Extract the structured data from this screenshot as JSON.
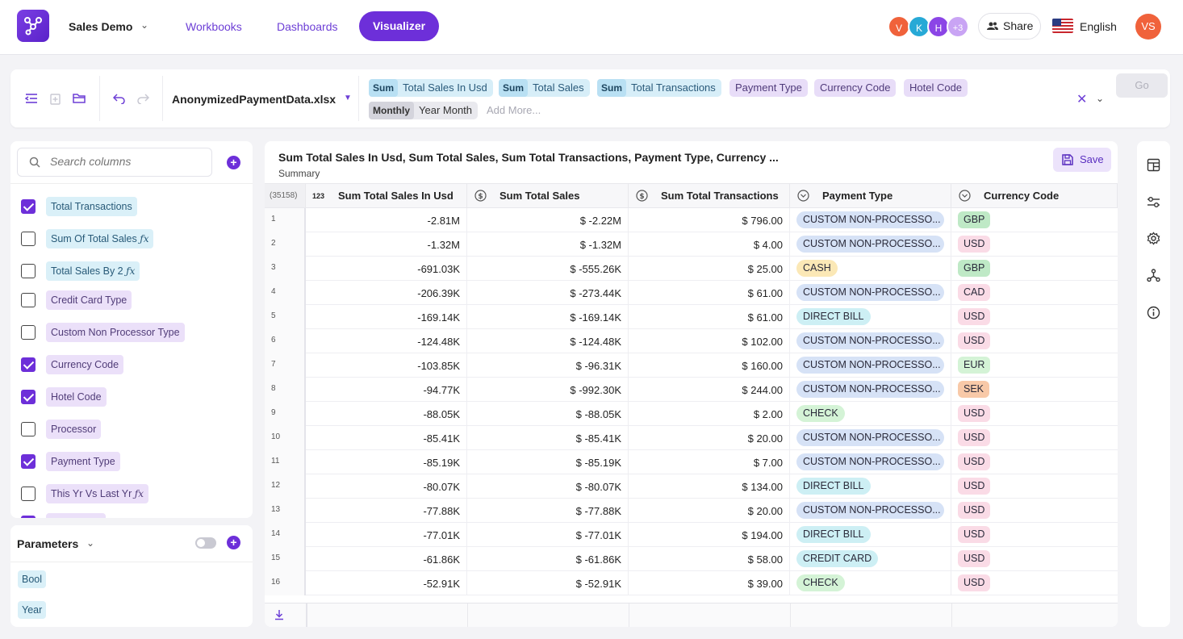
{
  "header": {
    "app_name": "Sales Demo",
    "nav": [
      "Workbooks",
      "Dashboards",
      "Visualizer"
    ],
    "active_nav": "Visualizer",
    "collaborators": [
      {
        "initial": "V",
        "color": "#f0623b"
      },
      {
        "initial": "K",
        "color": "#27a9d6"
      },
      {
        "initial": "H",
        "color": "#8b45e6"
      },
      {
        "initial": "+3",
        "color": "#c9a4f4"
      }
    ],
    "share_label": "Share",
    "language": "English",
    "user_initials": "VS"
  },
  "query": {
    "file_name": "AnonymizedPaymentData.xlsx",
    "chips_row1": [
      {
        "agg": "Sum",
        "label": "Total Sales In Usd",
        "kind": "blue"
      },
      {
        "agg": "Sum",
        "label": "Total Sales",
        "kind": "blue"
      },
      {
        "agg": "Sum",
        "label": "Total Transactions",
        "kind": "blue"
      },
      {
        "agg": "",
        "label": "Payment Type",
        "kind": "purple"
      },
      {
        "agg": "",
        "label": "Currency Code",
        "kind": "purple"
      },
      {
        "agg": "",
        "label": "Hotel Code",
        "kind": "purple"
      }
    ],
    "chips_row2": [
      {
        "agg": "Monthly",
        "label": "Year Month",
        "kind": "gray"
      }
    ],
    "add_more_placeholder": "Add More...",
    "go_label": "Go"
  },
  "columns_panel": {
    "search_placeholder": "Search columns",
    "items": [
      {
        "label": "Total Transactions",
        "checked": true,
        "kind": "blue",
        "fx": false
      },
      {
        "label": "Sum Of Total Sales",
        "checked": false,
        "kind": "blue",
        "fx": true
      },
      {
        "label": "Total Sales By 2",
        "checked": false,
        "kind": "blue",
        "fx": true
      },
      {
        "label": "Credit Card Type",
        "checked": false,
        "kind": "purple",
        "fx": false
      },
      {
        "label": "Custom Non Processor Type",
        "checked": false,
        "kind": "purple",
        "fx": false
      },
      {
        "label": "Currency Code",
        "checked": true,
        "kind": "purple",
        "fx": false
      },
      {
        "label": "Hotel Code",
        "checked": true,
        "kind": "purple",
        "fx": false
      },
      {
        "label": "Processor",
        "checked": false,
        "kind": "purple",
        "fx": false
      },
      {
        "label": "Payment Type",
        "checked": true,
        "kind": "purple",
        "fx": false
      },
      {
        "label": "This Yr Vs Last Yr",
        "checked": false,
        "kind": "purple",
        "fx": true
      }
    ]
  },
  "parameters": {
    "title": "Parameters",
    "items": [
      "Bool",
      "Year"
    ]
  },
  "table": {
    "title": "Sum Total Sales In Usd, Sum Total Sales, Sum Total Transactions, Payment Type, Currency ...",
    "subtitle": "Summary",
    "save_label": "Save",
    "row_count": "(35158)",
    "headers": [
      {
        "label": "Sum Total Sales In Usd",
        "icon": "123"
      },
      {
        "label": "Sum Total Sales",
        "icon": "$"
      },
      {
        "label": "Sum Total Transactions",
        "icon": "$"
      },
      {
        "label": "Payment Type",
        "icon": "v"
      },
      {
        "label": "Currency Code",
        "icon": "v"
      }
    ],
    "rows": [
      {
        "n": "1",
        "usd": "-2.81M",
        "sales": "$ -2.22M",
        "tx": "$ 796.00",
        "pt": "CUSTOM NON-PROCESSO...",
        "cc": "GBP"
      },
      {
        "n": "2",
        "usd": "-1.32M",
        "sales": "$ -1.32M",
        "tx": "$ 4.00",
        "pt": "CUSTOM NON-PROCESSO...",
        "cc": "USD"
      },
      {
        "n": "3",
        "usd": "-691.03K",
        "sales": "$ -555.26K",
        "tx": "$ 25.00",
        "pt": "CASH",
        "cc": "GBP"
      },
      {
        "n": "4",
        "usd": "-206.39K",
        "sales": "$ -273.44K",
        "tx": "$ 61.00",
        "pt": "CUSTOM NON-PROCESSO...",
        "cc": "CAD"
      },
      {
        "n": "5",
        "usd": "-169.14K",
        "sales": "$ -169.14K",
        "tx": "$ 61.00",
        "pt": "DIRECT BILL",
        "cc": "USD"
      },
      {
        "n": "6",
        "usd": "-124.48K",
        "sales": "$ -124.48K",
        "tx": "$ 102.00",
        "pt": "CUSTOM NON-PROCESSO...",
        "cc": "USD"
      },
      {
        "n": "7",
        "usd": "-103.85K",
        "sales": "$ -96.31K",
        "tx": "$ 160.00",
        "pt": "CUSTOM NON-PROCESSO...",
        "cc": "EUR"
      },
      {
        "n": "8",
        "usd": "-94.77K",
        "sales": "$ -992.30K",
        "tx": "$ 244.00",
        "pt": "CUSTOM NON-PROCESSO...",
        "cc": "SEK"
      },
      {
        "n": "9",
        "usd": "-88.05K",
        "sales": "$ -88.05K",
        "tx": "$ 2.00",
        "pt": "CHECK",
        "cc": "USD"
      },
      {
        "n": "10",
        "usd": "-85.41K",
        "sales": "$ -85.41K",
        "tx": "$ 20.00",
        "pt": "CUSTOM NON-PROCESSO...",
        "cc": "USD"
      },
      {
        "n": "11",
        "usd": "-85.19K",
        "sales": "$ -85.19K",
        "tx": "$ 7.00",
        "pt": "CUSTOM NON-PROCESSO...",
        "cc": "USD"
      },
      {
        "n": "12",
        "usd": "-80.07K",
        "sales": "$ -80.07K",
        "tx": "$ 134.00",
        "pt": "DIRECT BILL",
        "cc": "USD"
      },
      {
        "n": "13",
        "usd": "-77.88K",
        "sales": "$ -77.88K",
        "tx": "$ 20.00",
        "pt": "CUSTOM NON-PROCESSO...",
        "cc": "USD"
      },
      {
        "n": "14",
        "usd": "-77.01K",
        "sales": "$ -77.01K",
        "tx": "$ 194.00",
        "pt": "DIRECT BILL",
        "cc": "USD"
      },
      {
        "n": "15",
        "usd": "-61.86K",
        "sales": "$ -61.86K",
        "tx": "$ 58.00",
        "pt": "CREDIT CARD",
        "cc": "USD"
      },
      {
        "n": "16",
        "usd": "-52.91K",
        "sales": "$ -52.91K",
        "tx": "$ 39.00",
        "pt": "CHECK",
        "cc": "USD"
      }
    ]
  },
  "colors": {
    "accent": "#6d2fd9",
    "currency": {
      "GBP": "#bfe9c6",
      "USD": "#fadbe6",
      "CAD": "#fadbe6",
      "EUR": "#d4f3d6",
      "SEK": "#f8c9a8"
    }
  }
}
